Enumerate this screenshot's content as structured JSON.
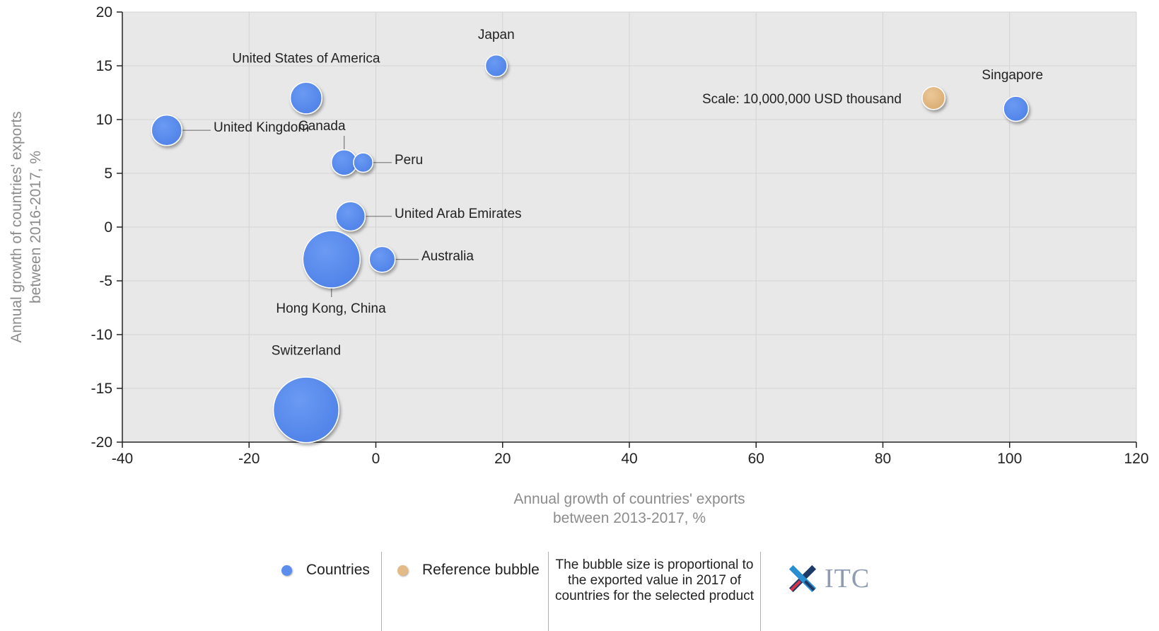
{
  "chart_data": {
    "type": "bubble",
    "title": "",
    "xlabel_lines": [
      "Annual growth of countries' exports",
      "between 2013-2017, %"
    ],
    "ylabel_lines": [
      "Annual growth of countries' exports",
      "between 2016-2017, %"
    ],
    "xlim": [
      -40,
      120
    ],
    "ylim": [
      -20,
      20
    ],
    "xticks": [
      -40,
      -20,
      0,
      20,
      40,
      60,
      80,
      100,
      120
    ],
    "yticks": [
      20,
      15,
      10,
      5,
      0,
      -5,
      -10,
      -15,
      -20
    ],
    "grid": true,
    "series": [
      {
        "name": "Countries",
        "color": "#5b8def",
        "points": [
          {
            "label": "Japan",
            "x": 19,
            "y": 15,
            "size": 0.34
          },
          {
            "label": "United States of America",
            "x": -11,
            "y": 12,
            "size": 0.72
          },
          {
            "label": "United Kingdom",
            "x": -33,
            "y": 9,
            "size": 0.67
          },
          {
            "label": "Canada",
            "x": -5,
            "y": 6,
            "size": 0.47
          },
          {
            "label": "Peru",
            "x": -2,
            "y": 6,
            "size": 0.27
          },
          {
            "label": "United Arab Emirates",
            "x": -4,
            "y": 1,
            "size": 0.62
          },
          {
            "label": "Hong Kong, China",
            "x": -7,
            "y": -3,
            "size": 2.36
          },
          {
            "label": "Australia",
            "x": 1,
            "y": -3,
            "size": 0.48
          },
          {
            "label": "Switzerland",
            "x": -11,
            "y": -17,
            "size": 3.1
          },
          {
            "label": "Singapore",
            "x": 101,
            "y": 11,
            "size": 0.45
          }
        ]
      },
      {
        "name": "Reference bubble",
        "color": "#e3bb86",
        "points": [
          {
            "label": "Scale: 10,000,000 USD thousand",
            "x": 88,
            "y": 12,
            "size": 0.38
          }
        ]
      }
    ],
    "legend": {
      "position": "bottom",
      "note": "The bubble size is proportional to the exported value in 2017 of countries for the selected product"
    }
  },
  "legend": {
    "countries_label": "Countries",
    "reference_label": "Reference bubble",
    "note": "The bubble size is proportional to the exported value in 2017 of countries for the selected product",
    "countries_color": "#5b8def",
    "reference_color": "#e3bb86"
  },
  "logo": {
    "text": "ITC",
    "icon": "itc-logo-icon"
  }
}
